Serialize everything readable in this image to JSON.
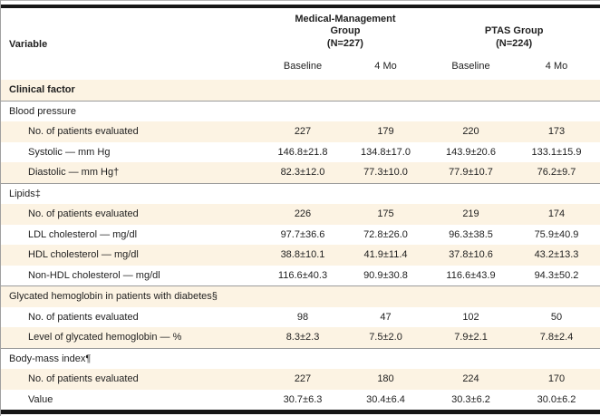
{
  "colors": {
    "stripe_bg": "#fcf3e3",
    "thin_rule_gray": "#9b9b9b",
    "thick_rule_black": "#161616",
    "text": "#1f1f1f"
  },
  "table": {
    "variable_header": "Variable",
    "group_headers": [
      {
        "lines": [
          "Medical-Management",
          "Group",
          "(N=227)"
        ]
      },
      {
        "lines": [
          "PTAS Group",
          "(N=224)"
        ]
      }
    ],
    "sub_headers": [
      "Baseline",
      "4 Mo",
      "Baseline",
      "4 Mo"
    ],
    "rows": [
      {
        "label": "Clinical factor",
        "type": "section",
        "indent": false,
        "rule": false,
        "values": []
      },
      {
        "label": "Blood pressure",
        "type": "group",
        "indent": false,
        "rule": true,
        "values": []
      },
      {
        "label": "No. of patients evaluated",
        "type": "data",
        "indent": true,
        "rule": false,
        "values": [
          "227",
          "179",
          "220",
          "173"
        ]
      },
      {
        "label": "Systolic — mm Hg",
        "type": "data",
        "indent": true,
        "rule": false,
        "values": [
          "146.8±21.8",
          "134.8±17.0",
          "143.9±20.6",
          "133.1±15.9"
        ]
      },
      {
        "label": "Diastolic — mm Hg†",
        "type": "data",
        "indent": true,
        "rule": false,
        "values": [
          "82.3±12.0",
          "77.3±10.0",
          "77.9±10.7",
          "76.2±9.7"
        ]
      },
      {
        "label": "Lipids‡",
        "type": "group",
        "indent": false,
        "rule": true,
        "values": []
      },
      {
        "label": "No. of patients evaluated",
        "type": "data",
        "indent": true,
        "rule": false,
        "values": [
          "226",
          "175",
          "219",
          "174"
        ]
      },
      {
        "label": "LDL cholesterol — mg/dl",
        "type": "data",
        "indent": true,
        "rule": false,
        "values": [
          "97.7±36.6",
          "72.8±26.0",
          "96.3±38.5",
          "75.9±40.9"
        ]
      },
      {
        "label": "HDL cholesterol — mg/dl",
        "type": "data",
        "indent": true,
        "rule": false,
        "values": [
          "38.8±10.1",
          "41.9±11.4",
          "37.8±10.6",
          "43.2±13.3"
        ]
      },
      {
        "label": "Non-HDL cholesterol — mg/dl",
        "type": "data",
        "indent": true,
        "rule": false,
        "values": [
          "116.6±40.3",
          "90.9±30.8",
          "116.6±43.9",
          "94.3±50.2"
        ]
      },
      {
        "label": "Glycated hemoglobin in patients with diabetes§",
        "type": "group",
        "indent": false,
        "rule": true,
        "values": []
      },
      {
        "label": "No. of patients evaluated",
        "type": "data",
        "indent": true,
        "rule": false,
        "values": [
          "98",
          "47",
          "102",
          "50"
        ]
      },
      {
        "label": "Level of glycated hemoglobin — %",
        "type": "data",
        "indent": true,
        "rule": false,
        "values": [
          "8.3±2.3",
          "7.5±2.0",
          "7.9±2.1",
          "7.8±2.4"
        ]
      },
      {
        "label": "Body-mass index¶",
        "type": "group",
        "indent": false,
        "rule": true,
        "values": []
      },
      {
        "label": "No. of patients evaluated",
        "type": "data",
        "indent": true,
        "rule": false,
        "values": [
          "227",
          "180",
          "224",
          "170"
        ]
      },
      {
        "label": "Value",
        "type": "data",
        "indent": true,
        "rule": false,
        "values": [
          "30.7±6.3",
          "30.4±6.4",
          "30.3±6.2",
          "30.0±6.2"
        ]
      }
    ]
  }
}
